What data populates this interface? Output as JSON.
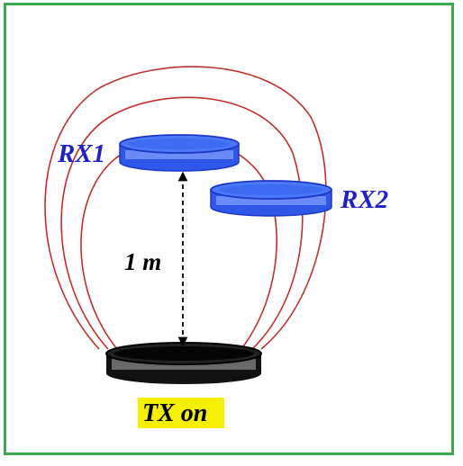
{
  "labels": {
    "rx1": "RX1",
    "rx2": "RX2",
    "distance": "1 m",
    "tx": "TX on"
  },
  "colors": {
    "frame": "#3cab4f",
    "coil_blue": "#3d6cf2",
    "coil_blue_dark": "#1d38c8",
    "coil_black": "#111111",
    "field_lines": "#c0302c",
    "label_blue": "#2020c8",
    "tx_highlight": "#f4f000"
  }
}
